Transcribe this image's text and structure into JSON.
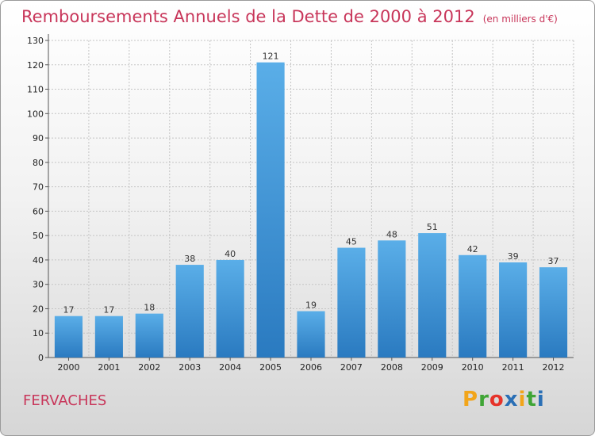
{
  "chart_data": {
    "type": "bar",
    "title": "Remboursements Annuels de la Dette de 2000 à 2012",
    "unit": "(en milliers d'€)",
    "categories": [
      "2000",
      "2001",
      "2002",
      "2003",
      "2004",
      "2005",
      "2006",
      "2007",
      "2008",
      "2009",
      "2010",
      "2011",
      "2012"
    ],
    "values": [
      17,
      17,
      18,
      38,
      40,
      121,
      19,
      45,
      48,
      51,
      42,
      39,
      37
    ],
    "ylim": [
      0,
      130
    ],
    "yticks": [
      0,
      10,
      20,
      30,
      40,
      50,
      60,
      70,
      80,
      90,
      100,
      110,
      120,
      130
    ],
    "grid": true,
    "bar_color": "#3d8fd4"
  },
  "city": "FERVACHES",
  "logo": {
    "letters": [
      "P",
      "r",
      "o",
      "x",
      "i",
      "t",
      "i"
    ],
    "colors": [
      "#f2a51a",
      "#3fa535",
      "#e6332a",
      "#2a6fb5",
      "#f2a51a",
      "#3fa535",
      "#2a6fb5"
    ]
  }
}
